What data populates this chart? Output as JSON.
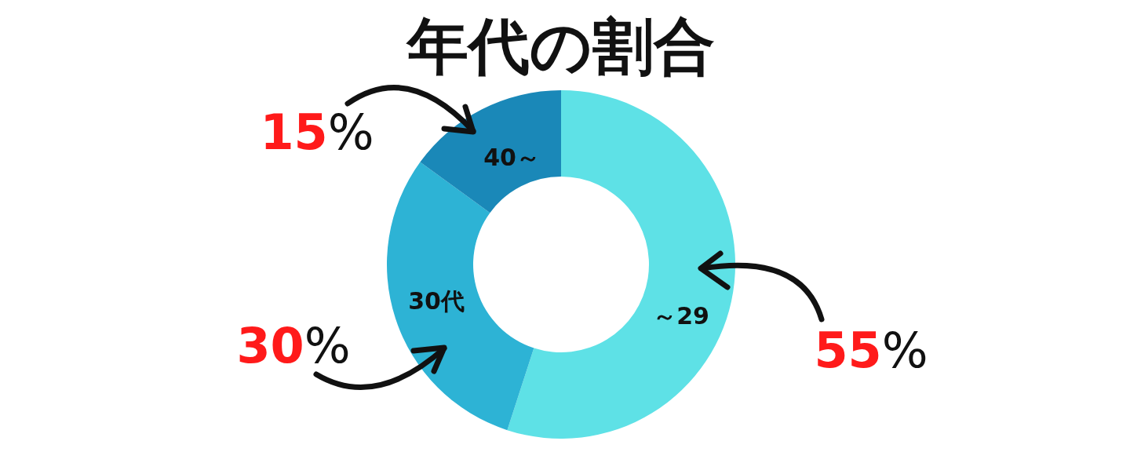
{
  "chart_data": {
    "type": "donut",
    "title": "年代の割合",
    "categories": [
      "～29",
      "30代",
      "40～"
    ],
    "values": [
      55,
      30,
      15
    ],
    "colors": [
      "#5ee1e6",
      "#2db3d5",
      "#1a88b8"
    ],
    "value_labels": [
      "55%",
      "30%",
      "15%"
    ]
  }
}
